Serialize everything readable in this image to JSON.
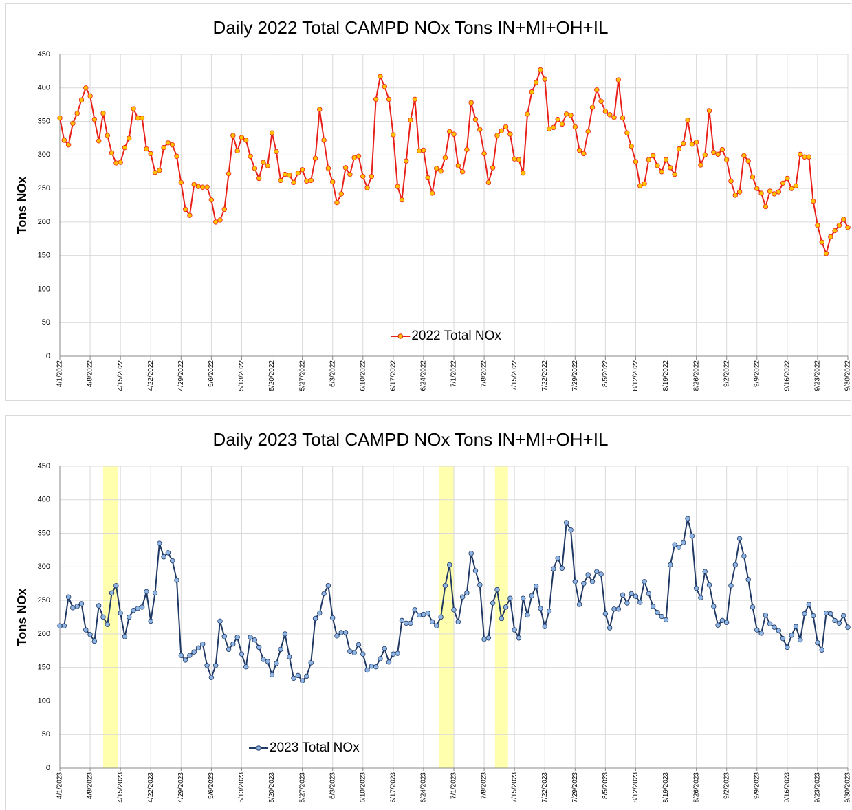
{
  "chart_data": [
    {
      "type": "line",
      "title": "Daily 2022 Total CAMPD NOx Tons IN+MI+OH+IL",
      "y_label": "Tons NOx",
      "categories": [
        "4/1/2022",
        null,
        null,
        null,
        null,
        null,
        null,
        "4/8/2022",
        null,
        null,
        null,
        null,
        null,
        null,
        "4/15/2022",
        null,
        null,
        null,
        null,
        null,
        null,
        "4/22/2022",
        null,
        null,
        null,
        null,
        null,
        null,
        "4/29/2022",
        null,
        null,
        null,
        null,
        null,
        null,
        "5/6/2022",
        null,
        null,
        null,
        null,
        null,
        null,
        "5/13/2022",
        null,
        null,
        null,
        null,
        null,
        null,
        "5/20/2022",
        null,
        null,
        null,
        null,
        null,
        null,
        "5/27/2022",
        null,
        null,
        null,
        null,
        null,
        null,
        "6/3/2022",
        null,
        null,
        null,
        null,
        null,
        null,
        "6/10/2022",
        null,
        null,
        null,
        null,
        null,
        null,
        "6/17/2022",
        null,
        null,
        null,
        null,
        null,
        null,
        "6/24/2022",
        null,
        null,
        null,
        null,
        null,
        null,
        "7/1/2022",
        null,
        null,
        null,
        null,
        null,
        null,
        "7/8/2022",
        null,
        null,
        null,
        null,
        null,
        null,
        "7/15/2022",
        null,
        null,
        null,
        null,
        null,
        null,
        "7/22/2022",
        null,
        null,
        null,
        null,
        null,
        null,
        "7/29/2022",
        null,
        null,
        null,
        null,
        null,
        null,
        "8/5/2022",
        null,
        null,
        null,
        null,
        null,
        null,
        "8/12/2022",
        null,
        null,
        null,
        null,
        null,
        null,
        "8/19/2022",
        null,
        null,
        null,
        null,
        null,
        null,
        "8/26/2022",
        null,
        null,
        null,
        null,
        null,
        null,
        "9/2/2022",
        null,
        null,
        null,
        null,
        null,
        null,
        "9/9/2022",
        null,
        null,
        null,
        null,
        null,
        null,
        "9/16/2022",
        null,
        null,
        null,
        null,
        null,
        null,
        "9/23/2022",
        null,
        null,
        null,
        null,
        null,
        null,
        "9/30/2022"
      ],
      "series": [
        {
          "name": "2022 Total NOx",
          "color": "#e8201a",
          "marker_color": "#ffc000",
          "values": [
            355,
            322,
            315,
            347,
            362,
            382,
            400,
            388,
            353,
            321,
            362,
            329,
            303,
            288,
            289,
            311,
            325,
            369,
            355,
            355,
            309,
            302,
            274,
            277,
            311,
            318,
            315,
            298,
            259,
            219,
            210,
            256,
            253,
            252,
            252,
            233,
            200,
            203,
            219,
            272,
            329,
            306,
            326,
            322,
            298,
            280,
            265,
            289,
            284,
            333,
            305,
            262,
            271,
            270,
            259,
            273,
            278,
            261,
            262,
            295,
            368,
            322,
            280,
            260,
            229,
            242,
            281,
            271,
            296,
            298,
            268,
            251,
            268,
            383,
            417,
            402,
            383,
            330,
            253,
            233,
            291,
            352,
            383,
            306,
            307,
            266,
            243,
            280,
            276,
            296,
            335,
            331,
            284,
            275,
            308,
            378,
            353,
            338,
            302,
            259,
            281,
            329,
            336,
            342,
            331,
            294,
            293,
            273,
            361,
            394,
            408,
            427,
            413,
            339,
            341,
            353,
            346,
            361,
            359,
            342,
            307,
            302,
            335,
            371,
            397,
            380,
            365,
            360,
            356,
            412,
            355,
            333,
            313,
            290,
            254,
            257,
            293,
            299,
            284,
            275,
            293,
            281,
            271,
            309,
            317,
            352,
            316,
            319,
            285,
            300,
            366,
            304,
            301,
            308,
            293,
            261,
            240,
            245,
            299,
            291,
            267,
            250,
            243,
            223,
            246,
            242,
            245,
            258,
            265,
            250,
            254,
            301,
            297,
            297,
            231,
            195,
            170,
            153,
            178,
            187,
            195,
            204,
            192
          ]
        }
      ],
      "ylim": [
        0,
        450
      ],
      "yticks": [
        0,
        50,
        100,
        150,
        200,
        250,
        300,
        350,
        400,
        450
      ],
      "grid": true,
      "legend": "lower center"
    },
    {
      "type": "line",
      "title": "Daily 2023 Total CAMPD NOx Tons IN+MI+OH+IL",
      "y_label": "Tons NOx",
      "categories": [
        "4/1/2023",
        null,
        null,
        null,
        null,
        null,
        null,
        "4/8/2023",
        null,
        null,
        null,
        null,
        null,
        null,
        "4/15/2023",
        null,
        null,
        null,
        null,
        null,
        null,
        "4/22/2023",
        null,
        null,
        null,
        null,
        null,
        null,
        "4/29/2023",
        null,
        null,
        null,
        null,
        null,
        null,
        "5/6/2023",
        null,
        null,
        null,
        null,
        null,
        null,
        "5/13/2023",
        null,
        null,
        null,
        null,
        null,
        null,
        "5/20/2023",
        null,
        null,
        null,
        null,
        null,
        null,
        "5/27/2023",
        null,
        null,
        null,
        null,
        null,
        null,
        "6/3/2023",
        null,
        null,
        null,
        null,
        null,
        null,
        "6/10/2023",
        null,
        null,
        null,
        null,
        null,
        null,
        "6/17/2023",
        null,
        null,
        null,
        null,
        null,
        null,
        "6/24/2023",
        null,
        null,
        null,
        null,
        null,
        null,
        "7/1/2023",
        null,
        null,
        null,
        null,
        null,
        null,
        "7/8/2023",
        null,
        null,
        null,
        null,
        null,
        null,
        "7/15/2023",
        null,
        null,
        null,
        null,
        null,
        null,
        "7/22/2023",
        null,
        null,
        null,
        null,
        null,
        null,
        "7/29/2023",
        null,
        null,
        null,
        null,
        null,
        null,
        "8/5/2023",
        null,
        null,
        null,
        null,
        null,
        null,
        "8/12/2023",
        null,
        null,
        null,
        null,
        null,
        null,
        "8/19/2023",
        null,
        null,
        null,
        null,
        null,
        null,
        "8/26/2023",
        null,
        null,
        null,
        null,
        null,
        null,
        "9/2/2023",
        null,
        null,
        null,
        null,
        null,
        null,
        "9/9/2023",
        null,
        null,
        null,
        null,
        null,
        null,
        "9/16/2023",
        null,
        null,
        null,
        null,
        null,
        null,
        "9/23/2023",
        null,
        null,
        null,
        null,
        null,
        null,
        "9/30/2023"
      ],
      "series": [
        {
          "name": "2023 Total NOx",
          "color": "#1f3864",
          "marker_color": "#8db4e2",
          "values": [
            212,
            212,
            255,
            239,
            241,
            245,
            206,
            199,
            189,
            242,
            225,
            214,
            261,
            272,
            231,
            196,
            225,
            235,
            238,
            240,
            263,
            219,
            261,
            335,
            315,
            321,
            309,
            280,
            168,
            161,
            168,
            173,
            179,
            185,
            153,
            135,
            153,
            219,
            196,
            177,
            185,
            195,
            170,
            151,
            195,
            191,
            180,
            162,
            159,
            139,
            156,
            177,
            200,
            166,
            134,
            138,
            130,
            137,
            157,
            223,
            231,
            260,
            272,
            224,
            197,
            202,
            202,
            174,
            172,
            184,
            170,
            146,
            152,
            151,
            163,
            178,
            158,
            170,
            171,
            220,
            216,
            216,
            236,
            228,
            229,
            231,
            218,
            212,
            225,
            272,
            303,
            236,
            218,
            255,
            261,
            320,
            294,
            273,
            192,
            194,
            246,
            266,
            223,
            240,
            253,
            206,
            194,
            253,
            228,
            257,
            271,
            238,
            211,
            234,
            297,
            313,
            298,
            366,
            355,
            278,
            244,
            275,
            288,
            278,
            293,
            289,
            230,
            209,
            237,
            237,
            258,
            246,
            260,
            256,
            247,
            278,
            260,
            241,
            232,
            226,
            221,
            303,
            333,
            329,
            336,
            372,
            346,
            268,
            254,
            293,
            273,
            241,
            213,
            220,
            217,
            272,
            303,
            342,
            316,
            281,
            240,
            206,
            201,
            228,
            215,
            210,
            205,
            193,
            180,
            198,
            211,
            191,
            230,
            244,
            227,
            187,
            176,
            231,
            230,
            220,
            216,
            227,
            210
          ]
        }
      ],
      "ylim": [
        0,
        450
      ],
      "yticks": [
        0,
        50,
        100,
        150,
        200,
        250,
        300,
        350,
        400,
        450
      ],
      "grid": true,
      "legend": "lower left",
      "highlight_color": "#ffff99",
      "highlights": [
        [
          10,
          13.5
        ],
        [
          87.5,
          91
        ],
        [
          100.5,
          103.5
        ]
      ]
    }
  ]
}
